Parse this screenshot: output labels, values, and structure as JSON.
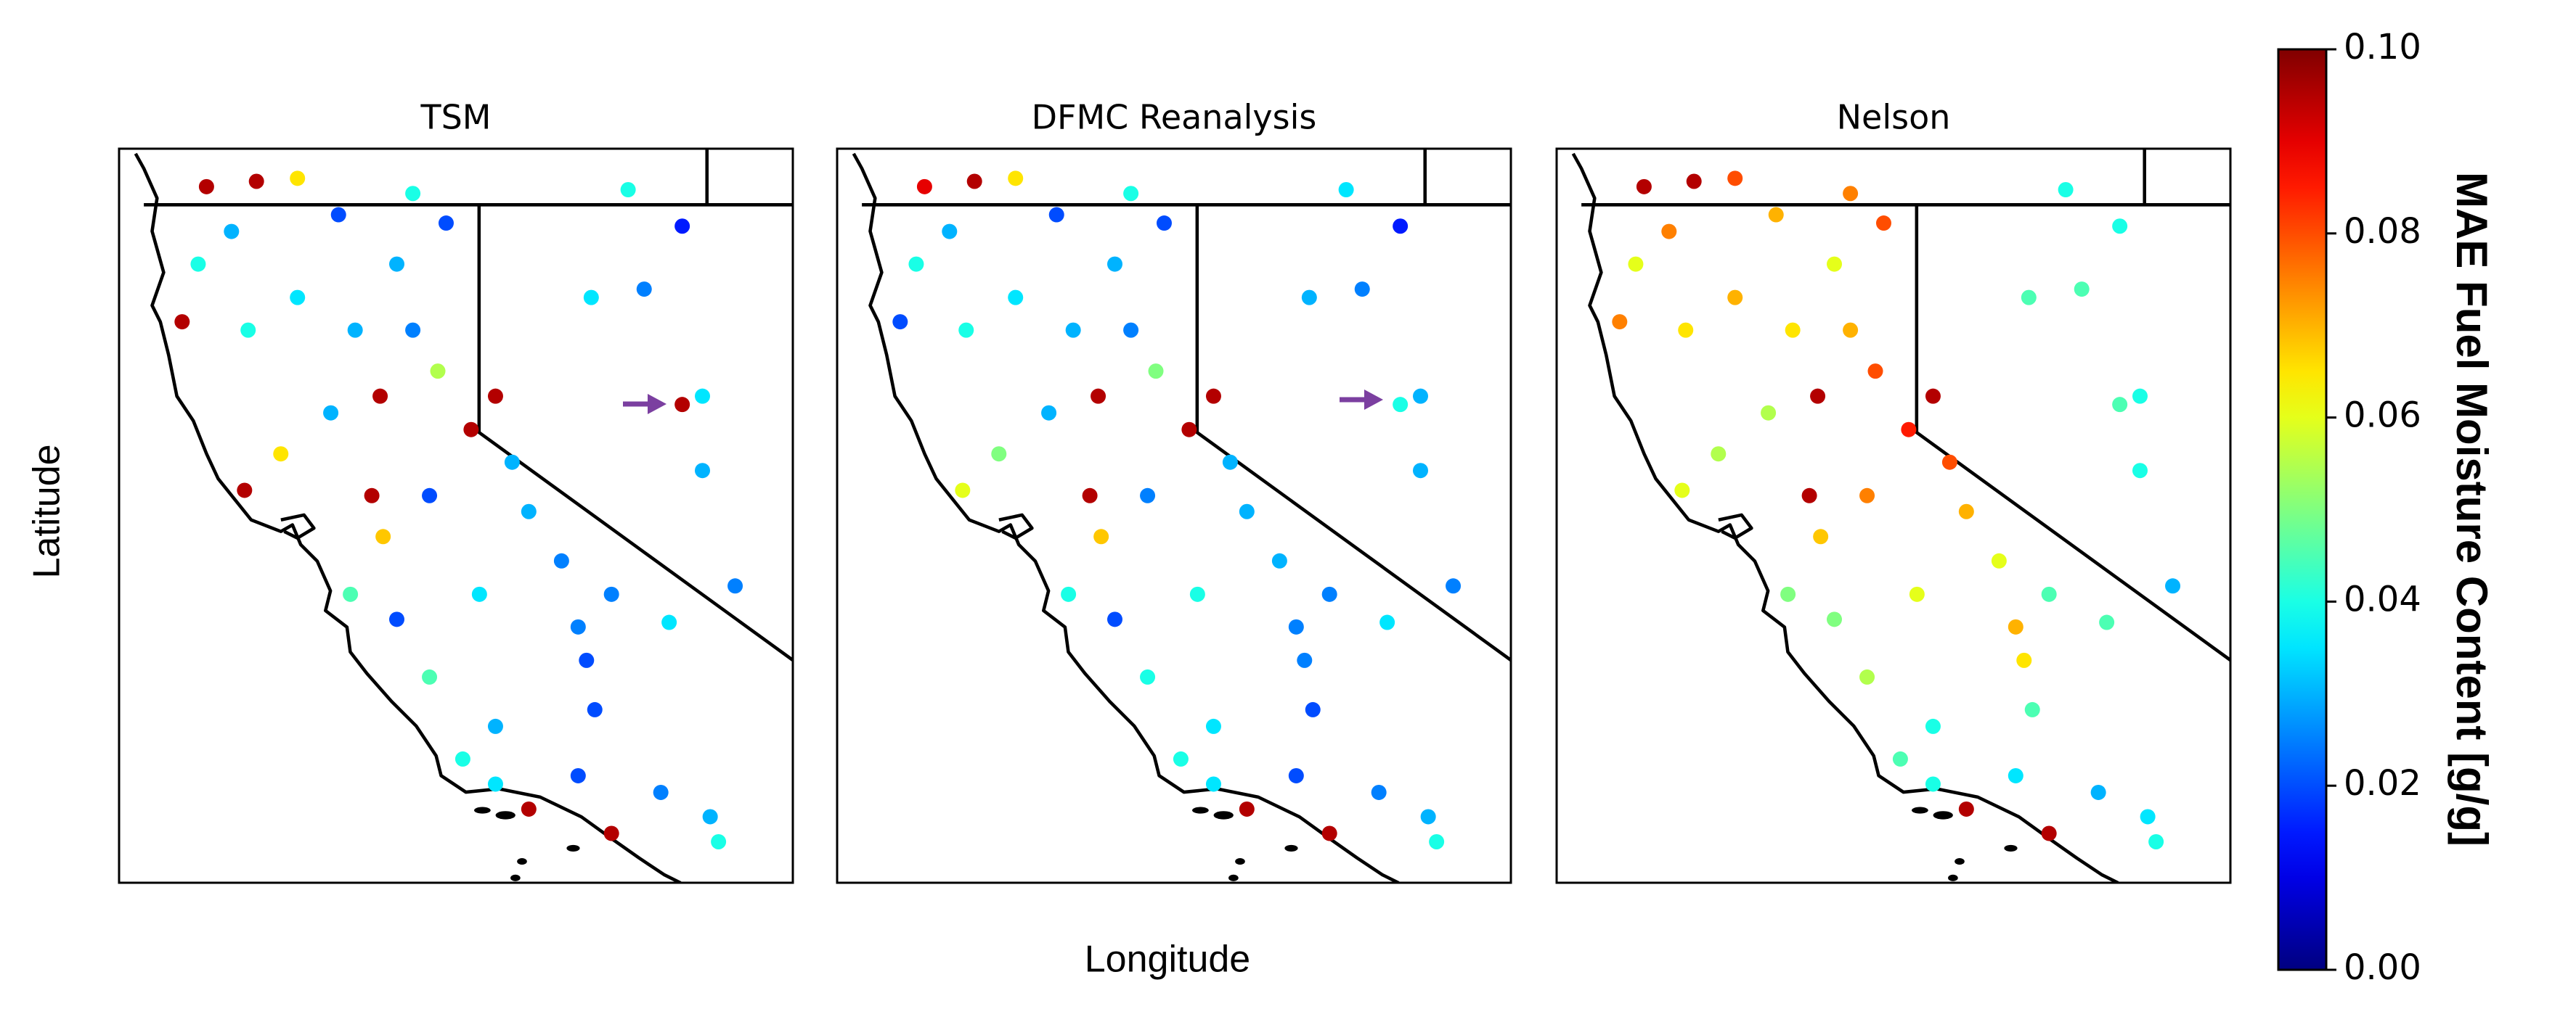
{
  "chart_data": [
    {
      "type": "scatter",
      "title": "TSM",
      "xlim": [
        -126.05,
        -114.72
      ],
      "ylim": [
        33.07,
        42.74
      ],
      "x": [
        -124.58,
        -123.74,
        -123.05,
        -121.11,
        -117.49,
        -116.58,
        -118.11,
        -117.22,
        -116.58,
        -116.24,
        -116.24,
        -115.69,
        -116.8,
        -121.66,
        -119.72,
        -120.13,
        -124.99,
        -122.36,
        -121.38,
        -123.88,
        -120.69,
        -122.49,
        -123.33,
        -123.94,
        -121.61,
        -121.8,
        -120.83,
        -119.16,
        -118.61,
        -122.16,
        -121.38,
        -119.99,
        -117.77,
        -118.19,
        -120.83,
        -119.72,
        -118.05,
        -119.16,
        -117.77,
        -119.72,
        -118.33,
        -116.94,
        -116.11,
        -115.97,
        -120.27,
        -123.05,
        -124.16,
        -124.72,
        -120.55,
        -122.08,
        -121.11,
        -119.44,
        -118.33
      ],
      "y": [
        42.24,
        42.31,
        42.35,
        42.15,
        42.2,
        41.72,
        40.78,
        40.89,
        39.37,
        39.48,
        38.5,
        36.98,
        36.5,
        39.48,
        39.48,
        39.04,
        40.46,
        41.87,
        41.22,
        40.35,
        39.81,
        39.26,
        38.72,
        38.24,
        37.63,
        38.17,
        38.17,
        37.96,
        37.31,
        36.87,
        36.54,
        36.87,
        36.87,
        36.0,
        35.78,
        35.13,
        35.35,
        34.04,
        33.72,
        34.37,
        34.48,
        34.26,
        33.94,
        33.61,
        34.7,
        40.78,
        41.65,
        41.22,
        41.76,
        40.35,
        40.35,
        38.61,
        36.44
      ],
      "values": [
        0.095,
        0.095,
        0.065,
        0.04,
        0.04,
        0.015,
        0.035,
        0.025,
        0.095,
        0.035,
        0.03,
        0.025,
        0.035,
        0.095,
        0.095,
        0.095,
        0.095,
        0.02,
        0.03,
        0.04,
        0.055,
        0.03,
        0.065,
        0.095,
        0.068,
        0.095,
        0.02,
        0.03,
        0.025,
        0.045,
        0.02,
        0.035,
        0.025,
        0.02,
        0.045,
        0.03,
        0.02,
        0.095,
        0.095,
        0.035,
        0.02,
        0.025,
        0.03,
        0.04,
        0.04,
        0.035,
        0.03,
        0.04,
        0.02,
        0.03,
        0.025,
        0.03,
        0.025
      ]
    },
    {
      "type": "scatter",
      "title": "DFMC Reanalysis",
      "xlim": [
        -126.05,
        -114.72
      ],
      "ylim": [
        33.07,
        42.74
      ],
      "x": [
        -124.58,
        -123.74,
        -123.05,
        -121.11,
        -117.49,
        -116.58,
        -118.11,
        -117.22,
        -116.58,
        -116.24,
        -116.24,
        -115.69,
        -116.8,
        -121.66,
        -119.72,
        -120.13,
        -124.99,
        -122.36,
        -121.38,
        -123.88,
        -120.69,
        -122.49,
        -123.33,
        -123.94,
        -121.61,
        -121.8,
        -120.83,
        -119.16,
        -118.61,
        -122.16,
        -121.38,
        -119.99,
        -117.77,
        -118.19,
        -120.83,
        -119.72,
        -118.05,
        -119.16,
        -117.77,
        -119.72,
        -118.33,
        -116.94,
        -116.11,
        -115.97,
        -120.27,
        -123.05,
        -124.16,
        -124.72,
        -120.55,
        -122.08,
        -121.11,
        -119.44,
        -118.33
      ],
      "y": [
        42.24,
        42.31,
        42.35,
        42.15,
        42.2,
        41.72,
        40.78,
        40.89,
        39.37,
        39.48,
        38.5,
        36.98,
        36.5,
        39.48,
        39.48,
        39.04,
        40.46,
        41.87,
        41.22,
        40.35,
        39.81,
        39.26,
        38.72,
        38.24,
        37.63,
        38.17,
        38.17,
        37.96,
        37.31,
        36.87,
        36.54,
        36.87,
        36.87,
        36.0,
        35.78,
        35.13,
        35.35,
        34.04,
        33.72,
        34.37,
        34.48,
        34.26,
        33.94,
        33.61,
        34.7,
        40.78,
        41.65,
        41.22,
        41.76,
        40.35,
        40.35,
        38.61,
        36.44
      ],
      "values": [
        0.09,
        0.095,
        0.065,
        0.04,
        0.035,
        0.015,
        0.03,
        0.025,
        0.04,
        0.03,
        0.03,
        0.025,
        0.035,
        0.095,
        0.095,
        0.095,
        0.02,
        0.02,
        0.03,
        0.04,
        0.05,
        0.03,
        0.05,
        0.06,
        0.068,
        0.095,
        0.025,
        0.03,
        0.03,
        0.04,
        0.02,
        0.04,
        0.025,
        0.025,
        0.04,
        0.035,
        0.02,
        0.095,
        0.095,
        0.035,
        0.02,
        0.025,
        0.03,
        0.04,
        0.04,
        0.035,
        0.03,
        0.04,
        0.02,
        0.03,
        0.025,
        0.03,
        0.025
      ]
    },
    {
      "type": "scatter",
      "title": "Nelson",
      "xlim": [
        -126.05,
        -114.72
      ],
      "ylim": [
        33.07,
        42.74
      ],
      "x": [
        -124.58,
        -123.74,
        -123.05,
        -121.11,
        -117.49,
        -116.58,
        -118.11,
        -117.22,
        -116.58,
        -116.24,
        -116.24,
        -115.69,
        -116.8,
        -121.66,
        -119.72,
        -120.13,
        -124.99,
        -122.36,
        -121.38,
        -123.88,
        -120.69,
        -122.49,
        -123.33,
        -123.94,
        -121.61,
        -121.8,
        -120.83,
        -119.16,
        -118.61,
        -122.16,
        -121.38,
        -119.99,
        -117.77,
        -118.19,
        -120.83,
        -119.72,
        -118.05,
        -119.16,
        -117.77,
        -119.72,
        -118.33,
        -116.94,
        -116.11,
        -115.97,
        -120.27,
        -123.05,
        -124.16,
        -124.72,
        -120.55,
        -122.08,
        -121.11,
        -119.44,
        -118.33
      ],
      "y": [
        42.24,
        42.31,
        42.35,
        42.15,
        42.2,
        41.72,
        40.78,
        40.89,
        39.37,
        39.48,
        38.5,
        36.98,
        36.5,
        39.48,
        39.48,
        39.04,
        40.46,
        41.87,
        41.22,
        40.35,
        39.81,
        39.26,
        38.72,
        38.24,
        37.63,
        38.17,
        38.17,
        37.96,
        37.31,
        36.87,
        36.54,
        36.87,
        36.87,
        36.0,
        35.78,
        35.13,
        35.35,
        34.04,
        33.72,
        34.37,
        34.48,
        34.26,
        33.94,
        33.61,
        34.7,
        40.78,
        41.65,
        41.22,
        41.76,
        40.35,
        40.35,
        38.61,
        36.44
      ],
      "values": [
        0.095,
        0.095,
        0.08,
        0.075,
        0.04,
        0.04,
        0.045,
        0.045,
        0.045,
        0.04,
        0.04,
        0.03,
        0.045,
        0.095,
        0.095,
        0.085,
        0.075,
        0.07,
        0.06,
        0.065,
        0.08,
        0.055,
        0.055,
        0.06,
        0.068,
        0.095,
        0.075,
        0.07,
        0.06,
        0.05,
        0.05,
        0.06,
        0.045,
        0.065,
        0.055,
        0.04,
        0.045,
        0.095,
        0.095,
        0.04,
        0.035,
        0.03,
        0.035,
        0.04,
        0.045,
        0.07,
        0.075,
        0.06,
        0.08,
        0.065,
        0.07,
        0.08,
        0.07
      ]
    }
  ],
  "axes": {
    "xlabel": "Longitude",
    "ylabel": "Latitude"
  },
  "colorbar": {
    "label": "MAE Fuel Moisture Content [g/g]",
    "colormap": "jet",
    "clim": [
      0,
      0.1
    ],
    "ticks": [
      {
        "value": 0,
        "label": "0.00"
      },
      {
        "value": 0.02,
        "label": "0.02"
      },
      {
        "value": 0.04,
        "label": "0.04"
      },
      {
        "value": 0.06,
        "label": "0.06"
      },
      {
        "value": 0.08,
        "label": "0.08"
      },
      {
        "value": 0.1,
        "label": "0.10"
      }
    ]
  }
}
